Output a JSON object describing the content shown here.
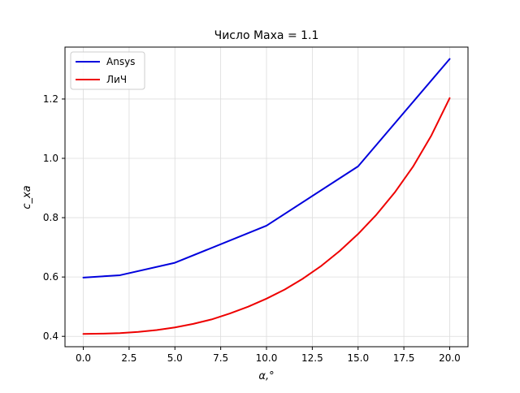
{
  "chart_data": {
    "type": "line",
    "title": "Число Маха = 1.1",
    "xlabel": "α,°",
    "ylabel": "c_xa",
    "xlim": [
      -1.0,
      21.0
    ],
    "ylim": [
      0.365,
      1.375
    ],
    "x_ticks": [
      0.0,
      2.5,
      5.0,
      7.5,
      10.0,
      12.5,
      15.0,
      17.5,
      20.0
    ],
    "x_tick_labels": [
      "0.0",
      "2.5",
      "5.0",
      "7.5",
      "10.0",
      "12.5",
      "15.0",
      "17.5",
      "20.0"
    ],
    "y_ticks": [
      0.4,
      0.6,
      0.8,
      1.0,
      1.2
    ],
    "y_tick_labels": [
      "0.4",
      "0.6",
      "0.8",
      "1.0",
      "1.2"
    ],
    "grid": true,
    "legend_position": "top-left",
    "series": [
      {
        "name": "Ansys",
        "color": "#0000dd",
        "x": [
          0,
          2,
          5,
          10,
          15,
          20
        ],
        "y": [
          0.598,
          0.606,
          0.648,
          0.773,
          0.973,
          1.335
        ]
      },
      {
        "name": "ЛиЧ",
        "color": "#ee0000",
        "x": [
          0,
          1,
          2,
          3,
          4,
          5,
          6,
          7,
          8,
          9,
          10,
          11,
          12,
          13,
          14,
          15,
          16,
          17,
          18,
          19,
          20
        ],
        "y": [
          0.408,
          0.409,
          0.411,
          0.415,
          0.421,
          0.43,
          0.442,
          0.457,
          0.477,
          0.5,
          0.527,
          0.558,
          0.595,
          0.638,
          0.688,
          0.745,
          0.81,
          0.885,
          0.972,
          1.077,
          1.203
        ]
      }
    ]
  }
}
